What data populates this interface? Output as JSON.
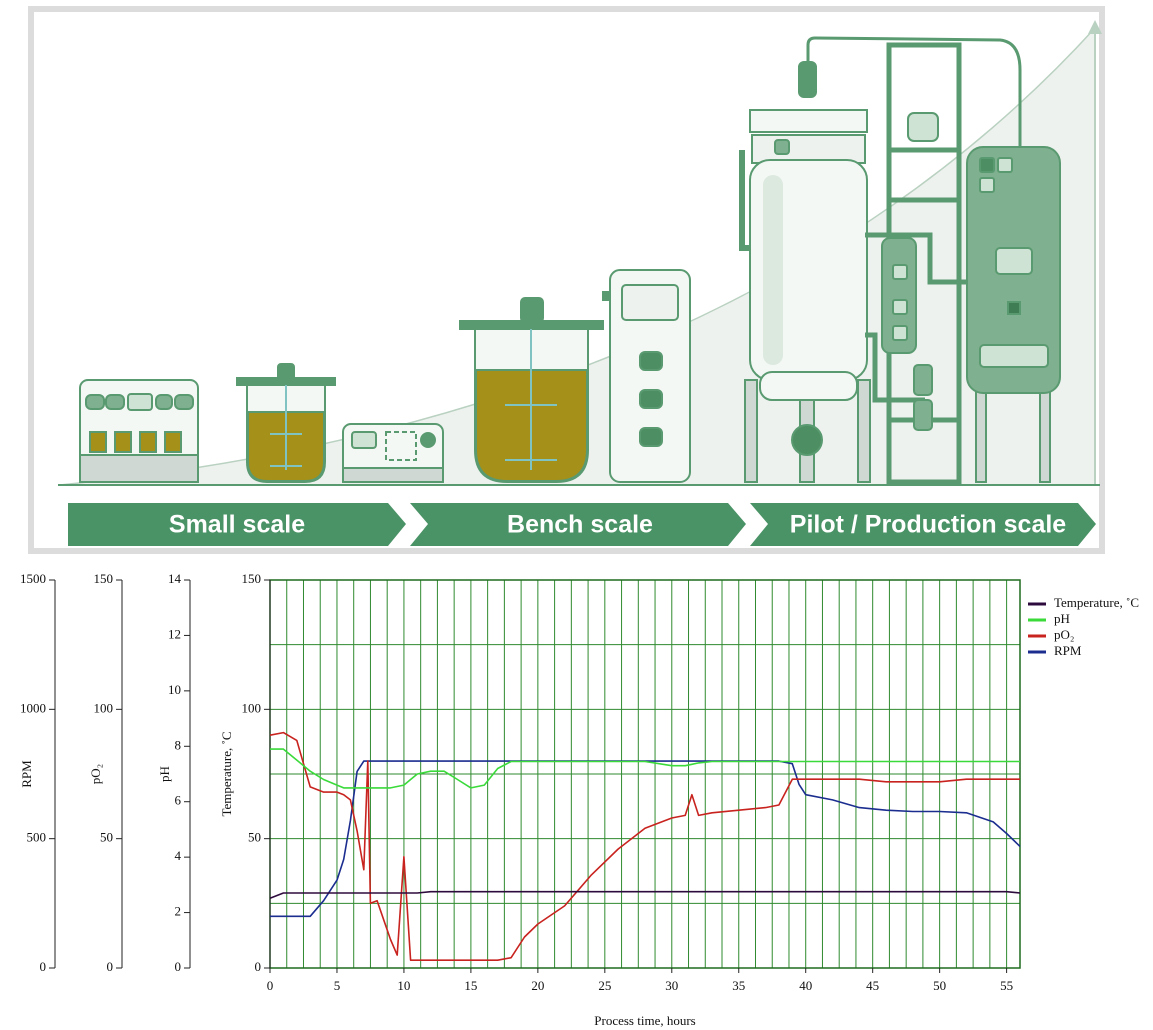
{
  "banner": {
    "stages": [
      "Small scale",
      "Bench scale",
      "Pilot / Production scale"
    ]
  },
  "chart_data": {
    "type": "line",
    "xlabel": "Process time, hours",
    "xlim": [
      0,
      56
    ],
    "xticks": [
      0,
      5,
      10,
      15,
      20,
      25,
      30,
      35,
      40,
      45,
      50,
      55
    ],
    "xgrid": [
      0,
      1.25,
      2.5,
      3.75,
      5,
      6.25,
      7.5,
      8.75,
      10,
      11.25,
      12.5,
      13.75,
      15,
      16.25,
      17.5,
      18.75,
      20,
      21.25,
      22.5,
      23.75,
      25,
      26.25,
      27.5,
      28.75,
      30,
      31.25,
      32.5,
      33.75,
      35,
      36.25,
      37.5,
      38.75,
      40,
      41.25,
      42.5,
      43.75,
      45,
      46.25,
      47.5,
      48.75,
      50,
      51.25,
      52.5,
      53.75,
      55
    ],
    "ylabel": "Temperature, ˚C",
    "ylim": [
      0,
      150
    ],
    "yticks": [
      0,
      50,
      100,
      150
    ],
    "ygrid": [
      0,
      25,
      50,
      75,
      100,
      125,
      150
    ],
    "y2label": "pH",
    "y2lim": [
      0,
      14
    ],
    "y2ticks": [
      0,
      2,
      4,
      6,
      8,
      10,
      12,
      14
    ],
    "y3label": "pO₂",
    "y3lim": [
      0,
      150
    ],
    "y3ticks": [
      0,
      50,
      100,
      150
    ],
    "y4label": "RPM",
    "y4lim": [
      0,
      1500
    ],
    "y4ticks": [
      0,
      500,
      1000,
      1500
    ],
    "grid": true,
    "legend": "right",
    "x": [
      0,
      1,
      2,
      3,
      4,
      5,
      5.5,
      6,
      6.5,
      7,
      7.3,
      7.5,
      8,
      9,
      9.5,
      10,
      10.5,
      11,
      12,
      13,
      14,
      15,
      16,
      17,
      18,
      19,
      20,
      22,
      24,
      26,
      28,
      30,
      31,
      31.5,
      32,
      33,
      35,
      37,
      38,
      39,
      39.5,
      40,
      42,
      44,
      46,
      48,
      50,
      52,
      54,
      55,
      56
    ],
    "series": [
      {
        "name": "Temperature, ˚C",
        "color": "#2e0b3d",
        "axis": "y",
        "values": [
          27,
          29,
          29,
          29,
          29,
          29,
          29,
          29,
          29,
          29,
          29,
          29,
          29,
          29,
          29,
          29,
          29,
          29,
          29.5,
          29.5,
          29.5,
          29.5,
          29.5,
          29.5,
          29.5,
          29.5,
          29.5,
          29.5,
          29.5,
          29.5,
          29.5,
          29.5,
          29.5,
          29.5,
          29.5,
          29.5,
          29.5,
          29.5,
          29.5,
          29.5,
          29.5,
          29.5,
          29.5,
          29.5,
          29.5,
          29.5,
          29.5,
          29.5,
          29.5,
          29.5,
          29
        ]
      },
      {
        "name": "pH",
        "color": "#3ada3a",
        "axis": "y2",
        "values": [
          7.9,
          7.9,
          7.5,
          7.1,
          6.8,
          6.6,
          6.5,
          6.5,
          6.5,
          6.5,
          6.5,
          6.5,
          6.5,
          6.5,
          6.55,
          6.6,
          6.8,
          7.0,
          7.1,
          7.1,
          6.8,
          6.5,
          6.6,
          7.2,
          7.45,
          7.45,
          7.45,
          7.45,
          7.45,
          7.45,
          7.45,
          7.3,
          7.3,
          7.35,
          7.4,
          7.45,
          7.45,
          7.45,
          7.45,
          7.45,
          7.45,
          7.45,
          7.45,
          7.45,
          7.45,
          7.45,
          7.45,
          7.45,
          7.45,
          7.45,
          7.45
        ]
      },
      {
        "name": "pO₂",
        "color": "#c8231e",
        "axis": "y3",
        "values": [
          90,
          91,
          88,
          70,
          68,
          68,
          67,
          65,
          53,
          38,
          80,
          25,
          26,
          11,
          5,
          43,
          3,
          3,
          3,
          3,
          3,
          3,
          3,
          3,
          4,
          12,
          17,
          24,
          36,
          46,
          54,
          58,
          59,
          67,
          59,
          60,
          61,
          62,
          63,
          73,
          73,
          73,
          73,
          73,
          72,
          72,
          72,
          73,
          73,
          73,
          73
        ]
      },
      {
        "name": "RPM",
        "color": "#1b2d8f",
        "axis": "y4",
        "values": [
          200,
          200,
          200,
          200,
          260,
          340,
          420,
          570,
          760,
          800,
          800,
          800,
          800,
          800,
          800,
          800,
          800,
          800,
          800,
          800,
          800,
          800,
          800,
          800,
          800,
          800,
          800,
          800,
          800,
          800,
          800,
          800,
          800,
          800,
          800,
          800,
          800,
          800,
          800,
          790,
          710,
          670,
          650,
          620,
          610,
          605,
          605,
          600,
          565,
          520,
          470
        ]
      }
    ]
  }
}
